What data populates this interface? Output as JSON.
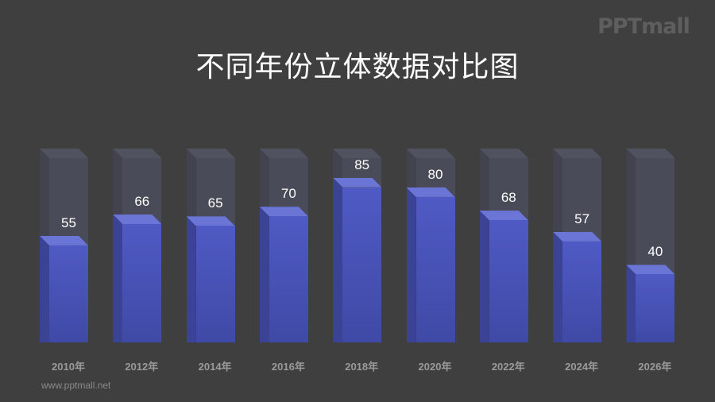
{
  "header": {
    "logo": "PPTmall",
    "title": "不同年份立体数据对比图"
  },
  "footer": {
    "url": "www.pptmall.net"
  },
  "colors": {
    "background": "#3f3f3f",
    "bar_fill": "#4f5ac4",
    "bar_track": "#4a4b58",
    "label": "#9a9a9a"
  },
  "chart_data": {
    "type": "bar",
    "title": "不同年份立体数据对比图",
    "categories": [
      "2010年",
      "2012年",
      "2014年",
      "2016年",
      "2018年",
      "2020年",
      "2022年",
      "2024年",
      "2026年"
    ],
    "values": [
      55,
      66,
      65,
      70,
      85,
      80,
      68,
      57,
      40
    ],
    "xlabel": "",
    "ylabel": "",
    "ylim": [
      0,
      100
    ],
    "grid": false,
    "legend": null,
    "style": "3d-column with background track"
  }
}
